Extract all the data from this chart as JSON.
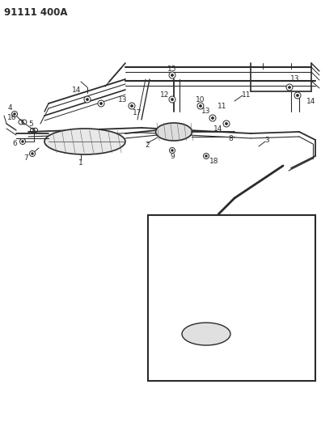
{
  "bg_color": "#ffffff",
  "line_color": "#2a2a2a",
  "label_fontsize": 6.5,
  "title": "91111 400A",
  "fig_width": 3.97,
  "fig_height": 5.33,
  "dpi": 100
}
